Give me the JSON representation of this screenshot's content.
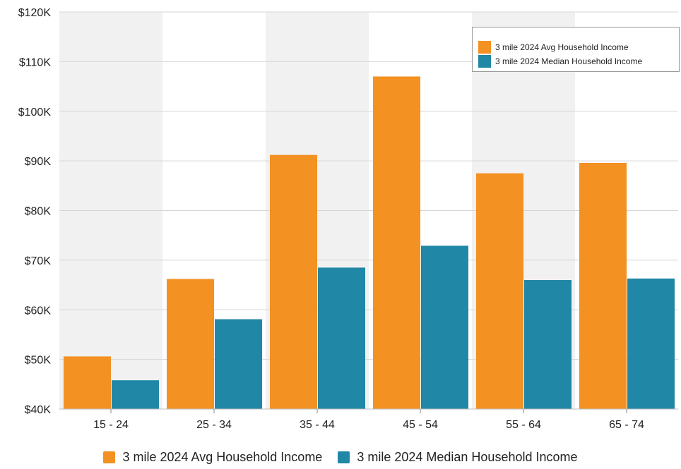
{
  "chart_data": {
    "type": "bar",
    "categories": [
      "15 - 24",
      "25 - 34",
      "35 - 44",
      "45 - 54",
      "55 - 64",
      "65 - 74"
    ],
    "series": [
      {
        "name": "3 mile 2024 Avg Household Income",
        "color": "#f39122",
        "values": [
          50600,
          66200,
          91200,
          107000,
          87500,
          89600
        ]
      },
      {
        "name": "3 mile 2024 Median Household Income",
        "color": "#2187a6",
        "values": [
          45800,
          58100,
          68500,
          72900,
          66000,
          66300
        ]
      }
    ],
    "y_ticks": [
      "$40K",
      "$50K",
      "$60K",
      "$70K",
      "$80K",
      "$90K",
      "$100K",
      "$110K",
      "$120K"
    ],
    "ylim": [
      40000,
      120000
    ],
    "grid": true,
    "band_color": "#f1f1f1",
    "legend_placement": "bottom-center and top-right inset"
  }
}
